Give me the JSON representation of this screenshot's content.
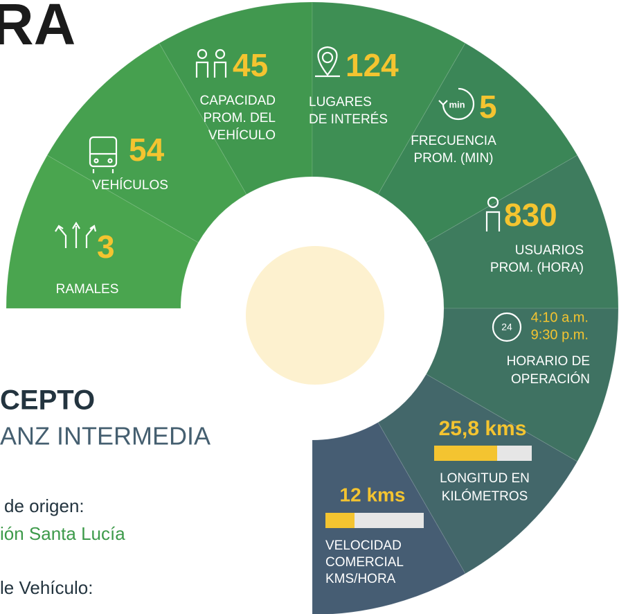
{
  "header": {
    "title_fragment": "RA",
    "concept": "CEPTO",
    "route_name": "ANZ INTERMEDIA",
    "origin_label": "de origen:",
    "origin_value": "ión Santa Lucía",
    "vehicle_label": "le Vehículo:"
  },
  "stats": [
    {
      "value": "3",
      "label": [
        "RAMALES"
      ]
    },
    {
      "value": "54",
      "label": [
        "VEHÍCULOS"
      ]
    },
    {
      "value": "45",
      "label": [
        "CAPACIDAD",
        "PROM. DEL",
        "VEHÍCULO"
      ]
    },
    {
      "value": "124",
      "label": [
        "LUGARES",
        "DE INTERÉS"
      ]
    },
    {
      "value": "5",
      "label": [
        "FRECUENCIA",
        "PROM. (MIN)"
      ]
    },
    {
      "value": "830",
      "label": [
        "USUARIOS",
        "PROM. (HORA)"
      ]
    },
    {
      "value": [
        "4:10 a.m.",
        "9:30 p.m."
      ],
      "label": [
        "HORARIO DE",
        "OPERACIÓN"
      ]
    },
    {
      "value": "25,8 kms",
      "label": [
        "LONGITUD EN",
        "KILÓMETROS"
      ]
    },
    {
      "value": "12 kms",
      "label": [
        "VELOCIDAD",
        "COMERCIAL",
        "KMS/HORA"
      ]
    }
  ]
}
